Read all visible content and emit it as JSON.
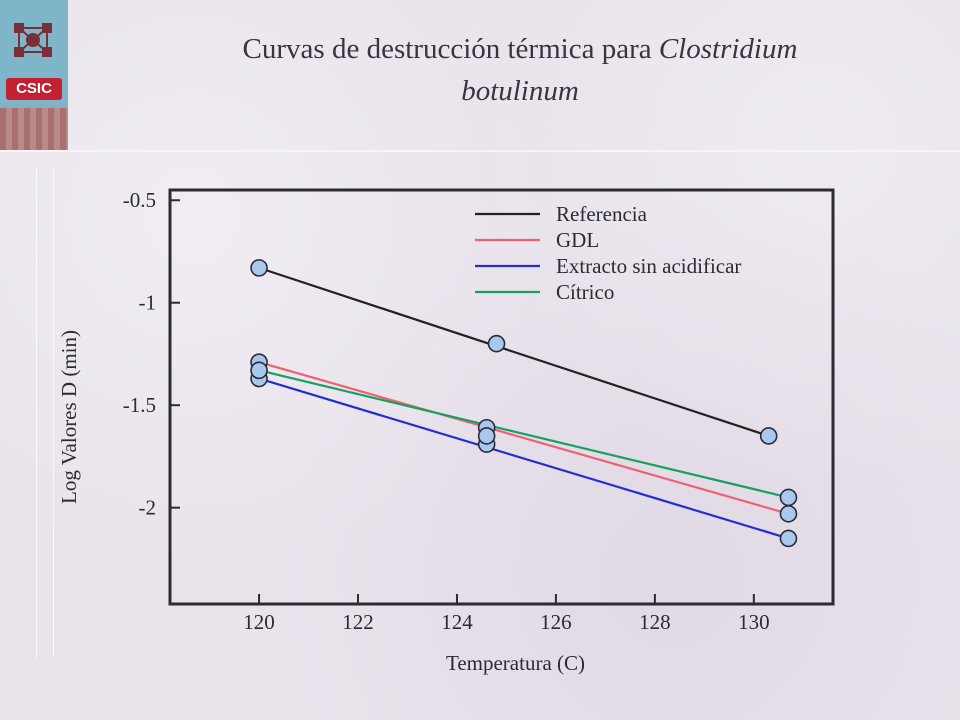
{
  "header": {
    "title_plain": "Curvas de destrucción térmica para ",
    "title_italic_1": "Clostridium",
    "title_italic_2": "botulinum"
  },
  "logo": {
    "text": "CSIC"
  },
  "colors": {
    "Referencia": "#222222",
    "GDL": "#f06070",
    "Extracto sin acidificar": "#2030d0",
    "Cítrico": "#18a060",
    "marker_fill": "#a8c8ee",
    "marker_stroke": "#2d2a33"
  },
  "chart_data": {
    "type": "scatter",
    "title": "",
    "xlabel": "Temperatura (C)",
    "ylabel": "Log Valores D (min)",
    "xlim": [
      118.2,
      131.6
    ],
    "ylim": [
      -2.47,
      -0.45
    ],
    "x_ticks": [
      120,
      122,
      124,
      126,
      128,
      130
    ],
    "y_ticks": [
      -0.5,
      -1,
      -1.5,
      -2
    ],
    "legend_position": "top-right",
    "grid": false,
    "series": [
      {
        "name": "Referencia",
        "points": [
          [
            120,
            -0.83
          ],
          [
            124.8,
            -1.2
          ],
          [
            130.3,
            -1.65
          ]
        ]
      },
      {
        "name": "GDL",
        "points": [
          [
            120,
            -1.29
          ],
          [
            124.6,
            -1.61
          ],
          [
            130.7,
            -2.03
          ]
        ]
      },
      {
        "name": "Extracto sin acidificar",
        "points": [
          [
            120,
            -1.37
          ],
          [
            124.6,
            -1.69
          ],
          [
            130.7,
            -2.15
          ]
        ]
      },
      {
        "name": "Cítrico",
        "points": [
          [
            120,
            -1.33
          ],
          [
            124.6,
            -1.65
          ],
          [
            130.7,
            -1.95
          ]
        ]
      }
    ]
  }
}
